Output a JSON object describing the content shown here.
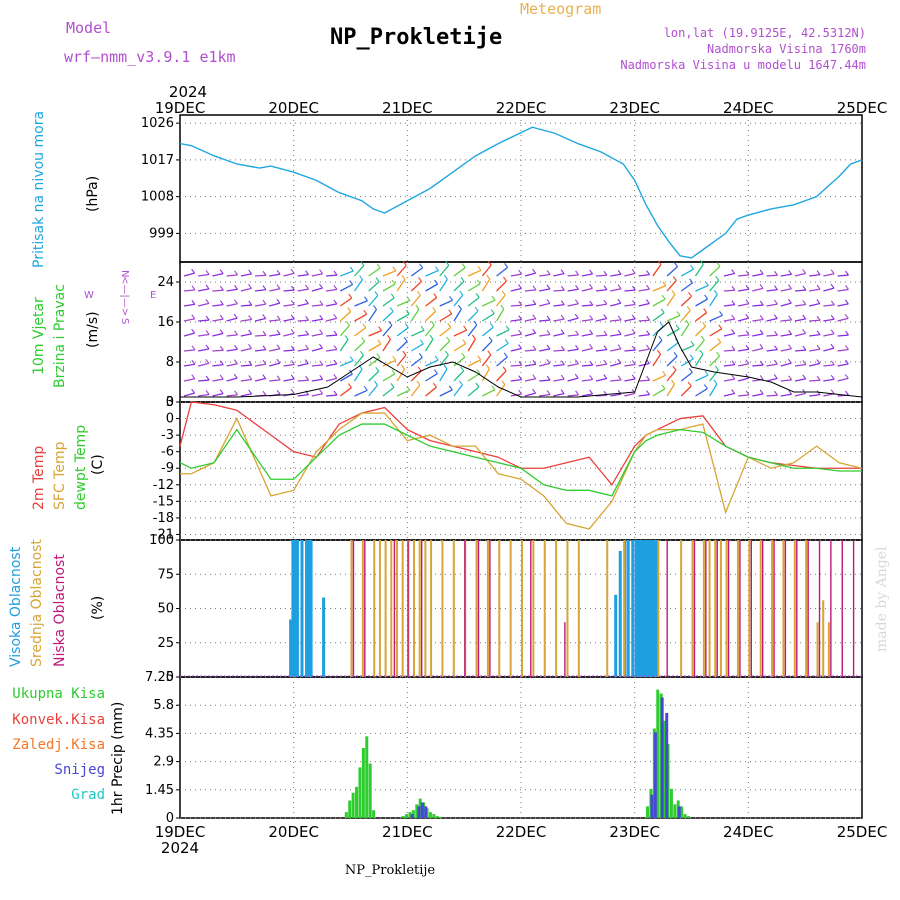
{
  "header": {
    "title": "NP_Prokletije",
    "subtitle": "Meteogram",
    "model_label": "Model",
    "model_name": "wrf—nmm_v3.9.1  e1km",
    "coords": "lon,lat (19.9125E, 42.5312N)",
    "elevation": "Nadmorska Visina 1760m",
    "model_elevation": "Nadmorska Visina u modelu 1647.44m",
    "year_top": "2024",
    "year_bottom": "2024",
    "footer": "NP_Prokletije",
    "credit": "made by Angel"
  },
  "dates": [
    "19DEC",
    "20DEC",
    "21DEC",
    "22DEC",
    "23DEC",
    "24DEC",
    "25DEC"
  ],
  "panels": {
    "pressure": {
      "labels": [
        "Pritisak na nivou mora",
        "(hPa)"
      ],
      "ticks": [
        "1026",
        "1017",
        "1008",
        "999"
      ]
    },
    "wind": {
      "labels": [
        "10m Vjetar",
        "Brzina i Pravac",
        "(m/s)"
      ],
      "ticks": [
        "24",
        "16",
        "8",
        "0"
      ],
      "compass": {
        "n": "N",
        "s": "S",
        "e": "E",
        "w": "W",
        "arrows": "<—|—>"
      }
    },
    "temp": {
      "labels": [
        "2m Temp",
        "SFC Temp",
        "dewpt Temp",
        "(C)"
      ],
      "ticks": [
        "3",
        "0",
        "-3",
        "-6",
        "-9",
        "-12",
        "-15",
        "-18",
        "-21"
      ]
    },
    "cloud": {
      "labels": [
        "Visoka Oblacnost",
        "Srednja Oblacnost",
        "Niska Oblacnost",
        "(%)"
      ],
      "ticks": [
        "100",
        "75",
        "50",
        "25",
        "0"
      ]
    },
    "precip": {
      "labels": [
        "1hr Precip (mm)"
      ],
      "ticks": [
        "7.25",
        "5.8",
        "4.35",
        "2.9",
        "1.45",
        "0"
      ],
      "legend": [
        "Ukupna Kisa",
        "Konvek.Kisa",
        "Zaledj.Kisa",
        "Snijeg",
        "Grad"
      ]
    }
  },
  "colors": {
    "pressure": "#1ea7e0",
    "temp2m": "#e8413c",
    "sfc": "#d7a536",
    "dewpt": "#2ecc2e",
    "high_cloud": "#1e9fe0",
    "mid_cloud": "#d7a536",
    "low_cloud": "#c0187a",
    "rain": "#2ecc2e",
    "conv": "#e8413c",
    "frz": "#f07828",
    "snow": "#4848d8",
    "hail": "#20c8c8",
    "purple": "#b04fd0"
  },
  "chart_data": [
    {
      "type": "line",
      "title": "Pritisak na nivou mora",
      "ylabel": "hPa",
      "ylim": [
        992,
        1028
      ],
      "x": [
        0,
        0.1,
        0.3,
        0.5,
        0.7,
        0.8,
        1.0,
        1.2,
        1.4,
        1.6,
        1.7,
        1.8,
        2.0,
        2.2,
        2.4,
        2.6,
        2.8,
        2.95,
        3.1,
        3.3,
        3.5,
        3.7,
        3.9,
        4.0,
        4.1,
        4.2,
        4.3,
        4.4,
        4.5,
        4.6,
        4.7,
        4.8,
        4.9,
        5.0,
        5.2,
        5.4,
        5.6,
        5.8,
        5.9,
        6.0
      ],
      "series": [
        {
          "values": [
            1021,
            1020.5,
            1018,
            1016,
            1015,
            1015.5,
            1014,
            1012,
            1009,
            1007,
            1005,
            1004,
            1007,
            1010,
            1014,
            1018,
            1021,
            1023,
            1025,
            1023.5,
            1021,
            1019,
            1016,
            1012,
            1006,
            1001,
            997,
            993.5,
            993,
            995,
            997,
            999,
            1002.5,
            1003.5,
            1005,
            1006,
            1008,
            1013,
            1016,
            1017
          ]
        }
      ]
    },
    {
      "type": "line",
      "title": "10m Vjetar Brzina i Pravac",
      "ylabel": "m/s",
      "ylim": [
        0,
        28
      ],
      "x": [
        0,
        0.5,
        1.0,
        1.3,
        1.5,
        1.7,
        2.0,
        2.2,
        2.4,
        2.6,
        2.8,
        3.0,
        3.5,
        4.0,
        4.1,
        4.2,
        4.3,
        4.4,
        4.5,
        4.7,
        5.0,
        5.2,
        5.4,
        5.6,
        6.0
      ],
      "series": [
        {
          "name": "Brzina",
          "values": [
            1,
            1,
            1.5,
            3,
            6,
            9,
            5,
            7,
            8,
            6,
            3,
            1,
            1,
            2,
            8,
            14,
            16,
            11,
            7,
            6,
            5,
            4,
            2,
            2,
            1
          ]
        }
      ]
    },
    {
      "type": "line",
      "title": "2m Temp / SFC Temp / dewpt Temp",
      "ylabel": "C",
      "ylim": [
        -22,
        3
      ],
      "x": [
        0,
        0.1,
        0.3,
        0.5,
        0.8,
        1.0,
        1.2,
        1.4,
        1.6,
        1.8,
        2.0,
        2.2,
        2.4,
        2.6,
        2.8,
        3.0,
        3.2,
        3.4,
        3.6,
        3.8,
        4.0,
        4.1,
        4.2,
        4.4,
        4.6,
        4.8,
        5.0,
        5.2,
        5.4,
        5.6,
        5.8,
        6.0
      ],
      "series": [
        {
          "name": "2m Temp",
          "values": [
            -5,
            3,
            2.5,
            1.5,
            -3,
            -6,
            -7,
            -1,
            1,
            2,
            -2,
            -4,
            -5,
            -6,
            -7,
            -9,
            -9,
            -8,
            -7,
            -12,
            -5,
            -3,
            -2,
            0,
            0.5,
            -5,
            -7,
            -8,
            -8.5,
            -9,
            -9,
            -9
          ]
        },
        {
          "name": "SFC Temp",
          "values": [
            -10,
            -10,
            -8,
            0,
            -14,
            -13,
            -6,
            -2,
            1,
            1,
            -4,
            -3,
            -5,
            -5,
            -10,
            -11,
            -14,
            -19,
            -20,
            -15,
            -6,
            -3,
            -2,
            -2,
            -1,
            -17,
            -7,
            -9,
            -8,
            -5,
            -8,
            -9
          ]
        },
        {
          "name": "dewpt Temp",
          "values": [
            -8,
            -9,
            -8,
            -2,
            -11,
            -11,
            -7,
            -3,
            -1,
            -1,
            -3,
            -5,
            -6,
            -7,
            -8,
            -9,
            -12,
            -13,
            -13,
            -14,
            -6,
            -4,
            -3,
            -2,
            -2.5,
            -5,
            -7,
            -8,
            -9,
            -9,
            -9.5,
            -9.5
          ]
        }
      ]
    },
    {
      "type": "bar",
      "title": "Oblacnost",
      "ylabel": "%",
      "ylim": [
        0,
        100
      ],
      "series": [
        {
          "name": "Visoka Oblacnost",
          "x": [
            0.96,
            0.98,
            1.0,
            1.02,
            1.06,
            1.1,
            1.12,
            1.14,
            1.25,
            3.82,
            3.86,
            3.9,
            3.93,
            3.97,
            4.0,
            4.02,
            4.04,
            4.06,
            4.08,
            4.1,
            4.12,
            4.14,
            4.16,
            4.18
          ],
          "values": [
            42,
            100,
            100,
            100,
            100,
            100,
            100,
            100,
            58,
            60,
            92,
            100,
            100,
            100,
            100,
            100,
            100,
            100,
            100,
            100,
            100,
            100,
            100,
            100
          ]
        },
        {
          "name": "Srednja Oblacnost",
          "x": [
            1.5,
            1.6,
            1.7,
            1.75,
            1.8,
            1.85,
            1.9,
            1.95,
            2.0,
            2.05,
            2.1,
            2.15,
            2.2,
            2.3,
            2.4,
            2.5,
            2.6,
            2.7,
            2.8,
            2.9,
            3.0,
            3.1,
            3.2,
            3.3,
            3.4,
            3.5,
            3.75,
            3.9,
            4.2,
            4.4,
            4.5,
            4.6,
            4.65,
            4.7,
            4.75,
            4.8,
            4.9,
            5.0,
            5.1,
            5.2,
            5.3,
            5.4,
            5.5,
            5.6,
            5.65,
            5.7
          ],
          "values": [
            100,
            100,
            100,
            100,
            100,
            100,
            100,
            100,
            100,
            100,
            100,
            100,
            100,
            100,
            100,
            100,
            100,
            100,
            100,
            100,
            100,
            100,
            100,
            100,
            100,
            100,
            100,
            100,
            100,
            100,
            100,
            100,
            100,
            100,
            100,
            100,
            100,
            100,
            100,
            100,
            100,
            100,
            100,
            40,
            56,
            40
          ]
        },
        {
          "name": "Niska Oblacnost",
          "x": [
            1.52,
            1.62,
            1.88,
            2.0,
            2.12,
            2.5,
            2.62,
            2.72,
            3.08,
            3.38,
            4.28,
            4.52,
            4.62,
            4.72,
            4.82,
            4.92,
            5.02,
            5.12,
            5.22,
            5.32,
            5.42,
            5.52,
            5.62,
            5.72,
            5.82,
            5.92
          ],
          "values": [
            100,
            100,
            100,
            100,
            100,
            100,
            100,
            100,
            100,
            40,
            100,
            100,
            100,
            100,
            100,
            100,
            100,
            100,
            100,
            100,
            100,
            100,
            100,
            100,
            100,
            100
          ]
        }
      ]
    },
    {
      "type": "bar",
      "title": "1hr Precip",
      "ylabel": "mm",
      "ylim": [
        0,
        7.25
      ],
      "series": [
        {
          "name": "Ukupna Kisa",
          "x": [
            1.45,
            1.48,
            1.51,
            1.54,
            1.57,
            1.6,
            1.63,
            1.66,
            1.69,
            1.95,
            1.98,
            2.01,
            2.04,
            2.07,
            2.1,
            2.13,
            2.16,
            2.19,
            2.22,
            2.25,
            2.28,
            4.1,
            4.13,
            4.16,
            4.19,
            4.22,
            4.25,
            4.28,
            4.31,
            4.34,
            4.37,
            4.4,
            4.43,
            4.46
          ],
          "values": [
            0.3,
            0.9,
            1.3,
            1.6,
            2.6,
            3.6,
            4.2,
            2.8,
            0.4,
            0.1,
            0.2,
            0.3,
            0.4,
            0.7,
            1.0,
            0.8,
            0.5,
            0.3,
            0.2,
            0.1,
            0.05,
            0.6,
            1.5,
            4.6,
            6.6,
            6.4,
            5.0,
            3.8,
            1.5,
            0.7,
            0.9,
            0.6,
            0.2,
            0.1
          ]
        },
        {
          "name": "Snijeg",
          "x": [
            2.02,
            2.08,
            2.11,
            2.14,
            4.13,
            4.16,
            4.22,
            4.26,
            4.37
          ],
          "values": [
            0.2,
            0.6,
            0.8,
            0.6,
            1.2,
            4.4,
            6.2,
            5.4,
            0.6
          ]
        }
      ]
    }
  ]
}
